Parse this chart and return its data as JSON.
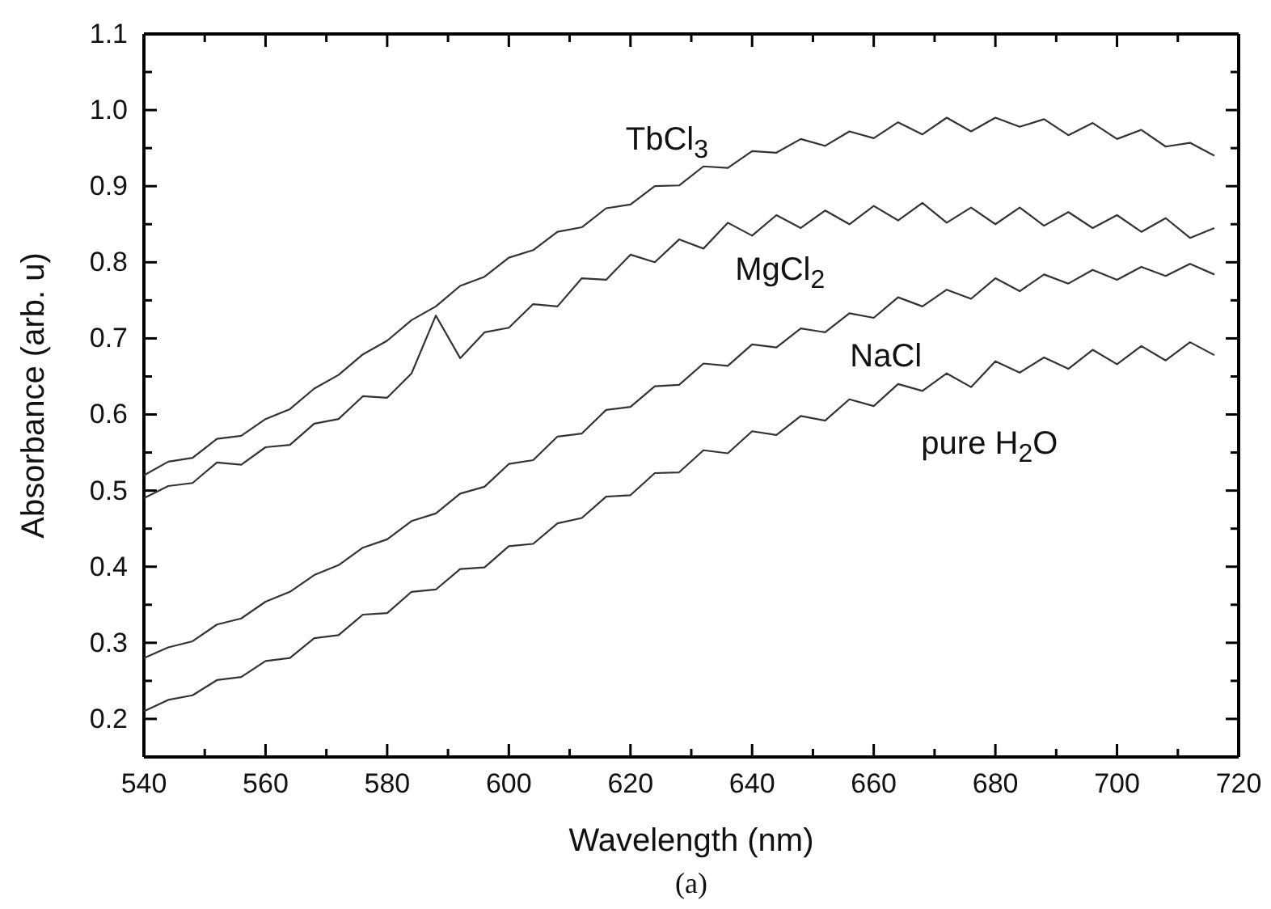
{
  "chart_data": {
    "type": "line",
    "xlabel": "Wavelength (nm)",
    "ylabel": "Absorbance (arb. u)",
    "annotations": [
      "(a)"
    ],
    "x": [
      540,
      544,
      548,
      552,
      556,
      560,
      564,
      568,
      572,
      576,
      580,
      584,
      588,
      592,
      596,
      600,
      604,
      608,
      612,
      616,
      620,
      624,
      628,
      632,
      636,
      640,
      644,
      648,
      652,
      656,
      660,
      664,
      668,
      672,
      676,
      680,
      684,
      688,
      692,
      696,
      700,
      704,
      708,
      712,
      716
    ],
    "xlim": [
      540,
      720
    ],
    "xticks": [
      540,
      560,
      580,
      600,
      620,
      640,
      660,
      680,
      700,
      720
    ],
    "ylim": [
      0.15,
      1.1
    ],
    "yticks": [
      0.2,
      0.3,
      0.4,
      0.5,
      0.6,
      0.7,
      0.8,
      0.9,
      {
        "value": 1.0,
        "label": "1.0"
      },
      1.1
    ],
    "grid": false,
    "legend": false,
    "marker": "none",
    "line_style": "solid",
    "series": [
      {
        "name": "TbCl$_{3}$",
        "color": "#333333",
        "values": [
          0.52,
          0.538,
          0.543,
          0.568,
          0.572,
          0.594,
          0.607,
          0.634,
          0.652,
          0.679,
          0.697,
          0.724,
          0.742,
          0.769,
          0.781,
          0.806,
          0.816,
          0.84,
          0.846,
          0.871,
          0.876,
          0.9,
          0.901,
          0.926,
          0.924,
          0.946,
          0.944,
          0.962,
          0.953,
          0.972,
          0.963,
          0.984,
          0.968,
          0.99,
          0.972,
          0.99,
          0.978,
          0.988,
          0.967,
          0.983,
          0.962,
          0.974,
          0.952,
          0.957,
          0.94
        ]
      },
      {
        "name": "MgCl$_{2}$",
        "color": "#333333",
        "values": [
          0.49,
          0.506,
          0.51,
          0.537,
          0.534,
          0.557,
          0.56,
          0.588,
          0.594,
          0.624,
          0.622,
          0.654,
          0.73,
          0.674,
          0.708,
          0.714,
          0.745,
          0.742,
          0.779,
          0.777,
          0.81,
          0.8,
          0.83,
          0.818,
          0.852,
          0.835,
          0.862,
          0.845,
          0.868,
          0.85,
          0.874,
          0.855,
          0.878,
          0.852,
          0.872,
          0.85,
          0.872,
          0.848,
          0.866,
          0.845,
          0.862,
          0.84,
          0.858,
          0.832,
          0.845
        ]
      },
      {
        "name": "NaCl",
        "color": "#333333",
        "values": [
          0.28,
          0.294,
          0.302,
          0.324,
          0.332,
          0.354,
          0.367,
          0.389,
          0.402,
          0.425,
          0.436,
          0.46,
          0.47,
          0.496,
          0.505,
          0.535,
          0.54,
          0.571,
          0.575,
          0.606,
          0.61,
          0.637,
          0.639,
          0.667,
          0.664,
          0.692,
          0.688,
          0.713,
          0.708,
          0.733,
          0.727,
          0.754,
          0.742,
          0.764,
          0.752,
          0.779,
          0.762,
          0.784,
          0.772,
          0.79,
          0.777,
          0.794,
          0.782,
          0.798,
          0.784
        ]
      },
      {
        "name": "pure H$_{2}$O",
        "color": "#333333",
        "values": [
          0.21,
          0.225,
          0.231,
          0.251,
          0.255,
          0.276,
          0.28,
          0.306,
          0.31,
          0.337,
          0.339,
          0.367,
          0.37,
          0.397,
          0.399,
          0.427,
          0.43,
          0.457,
          0.464,
          0.492,
          0.494,
          0.523,
          0.524,
          0.553,
          0.549,
          0.578,
          0.573,
          0.598,
          0.592,
          0.62,
          0.611,
          0.64,
          0.631,
          0.654,
          0.636,
          0.67,
          0.655,
          0.675,
          0.66,
          0.685,
          0.666,
          0.69,
          0.671,
          0.695,
          0.678
        ]
      }
    ]
  }
}
